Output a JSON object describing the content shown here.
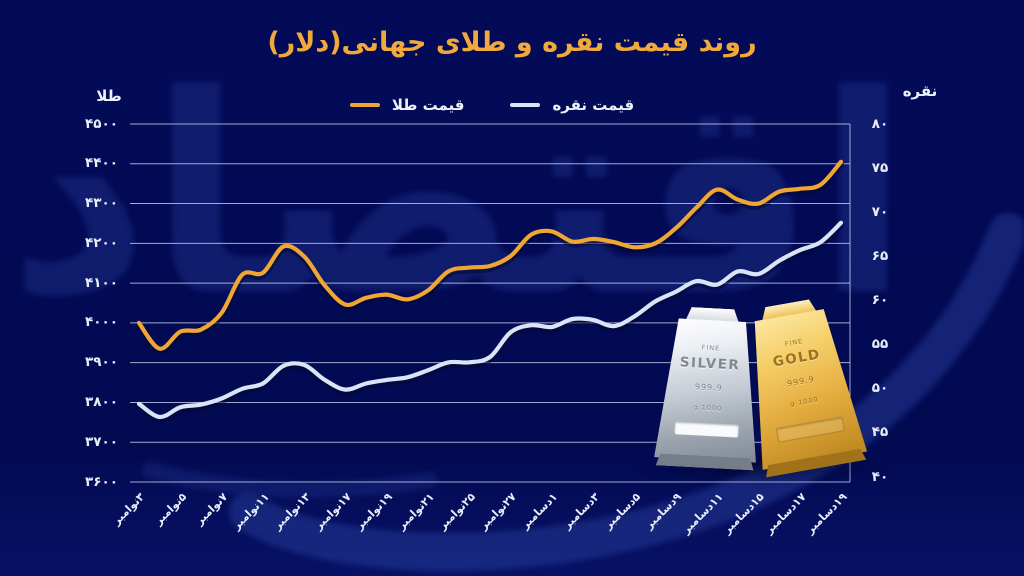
{
  "title": "روند قیمت نقره و طلای جهانی(دلار)",
  "watermark": {
    "text": "اقتصاد"
  },
  "chart_data": {
    "type": "line",
    "title": "روند قیمت نقره و طلای جهانی(دلار)",
    "x_labels": [
      "۳نوامبر",
      "۵نوامبر",
      "۷نوامبر",
      "۱۱نوامبر",
      "۱۳نوامبر",
      "۱۷نوامبر",
      "۱۹نوامبر",
      "۲۱نوامبر",
      "۲۵نوامبر",
      "۲۷نوامبر",
      "۱دسامبر",
      "۳دسامبر",
      "۵دسامبر",
      "۹دسامبر",
      "۱۱دسامبر",
      "۱۵دسامبر",
      "۱۷دسامبر",
      "۱۹دسامبر"
    ],
    "points_per_label": 2,
    "grid": true,
    "legend_position": "top-center",
    "left_axis": {
      "label": "طلا",
      "min": 3600,
      "max": 4500,
      "tick_step": 100,
      "tick_labels": [
        "۴۵۰۰",
        "۴۴۰۰",
        "۴۳۰۰",
        "۴۲۰۰",
        "۴۱۰۰",
        "۴۰۰۰",
        "۳۹۰۰",
        "۳۸۰۰",
        "۳۷۰۰",
        "۳۶۰۰"
      ]
    },
    "right_axis": {
      "label": "نقره",
      "min": 40,
      "max": 80,
      "tick_step": 5,
      "tick_labels": [
        "۸۰",
        "۷۵",
        "۷۰",
        "۶۵",
        "۶۰",
        "۵۵",
        "۵۰",
        "۴۵",
        "۴۰"
      ]
    },
    "series": [
      {
        "name": "قیمت طلا",
        "axis": "left",
        "color": "#F0A632",
        "values": [
          4000,
          3935,
          3978,
          3983,
          4025,
          4121,
          4126,
          4192,
          4167,
          4094,
          4046,
          4063,
          4071,
          4059,
          4082,
          4130,
          4139,
          4143,
          4168,
          4222,
          4230,
          4204,
          4211,
          4203,
          4190,
          4200,
          4238,
          4290,
          4335,
          4310,
          4300,
          4330,
          4337,
          4347,
          4405
        ]
      },
      {
        "name": "قیمت نقره",
        "axis": "right",
        "color": "#DAE4F6",
        "values": [
          48.3,
          46.8,
          47.9,
          48.2,
          48.9,
          50.0,
          50.6,
          52.6,
          52.7,
          51.0,
          49.9,
          50.6,
          51.0,
          51.3,
          52.1,
          53.0,
          53.0,
          53.6,
          56.4,
          57.2,
          57.0,
          57.9,
          57.8,
          57.1,
          58.2,
          59.9,
          61.0,
          62.2,
          61.8,
          63.3,
          63.0,
          64.5,
          65.7,
          66.6,
          68.8
        ]
      }
    ]
  },
  "bars_graphic": {
    "silver": {
      "top_text": "FINE",
      "metal": "SILVER",
      "purity": "999.9",
      "weight": "1000 g"
    },
    "gold": {
      "top_text": "FINE",
      "metal": "GOLD",
      "purity": "999.9",
      "weight": "1000 g"
    }
  },
  "colors": {
    "background": "#030A58",
    "title": "#F2A93B",
    "grid": "#C9D4EE",
    "axis_text": "#E8EDF9",
    "gold_line": "#F0A632",
    "silver_line": "#DAE4F6",
    "line_shadow": "rgba(2,6,45,0.5)",
    "watermark": "#2E46A5"
  }
}
